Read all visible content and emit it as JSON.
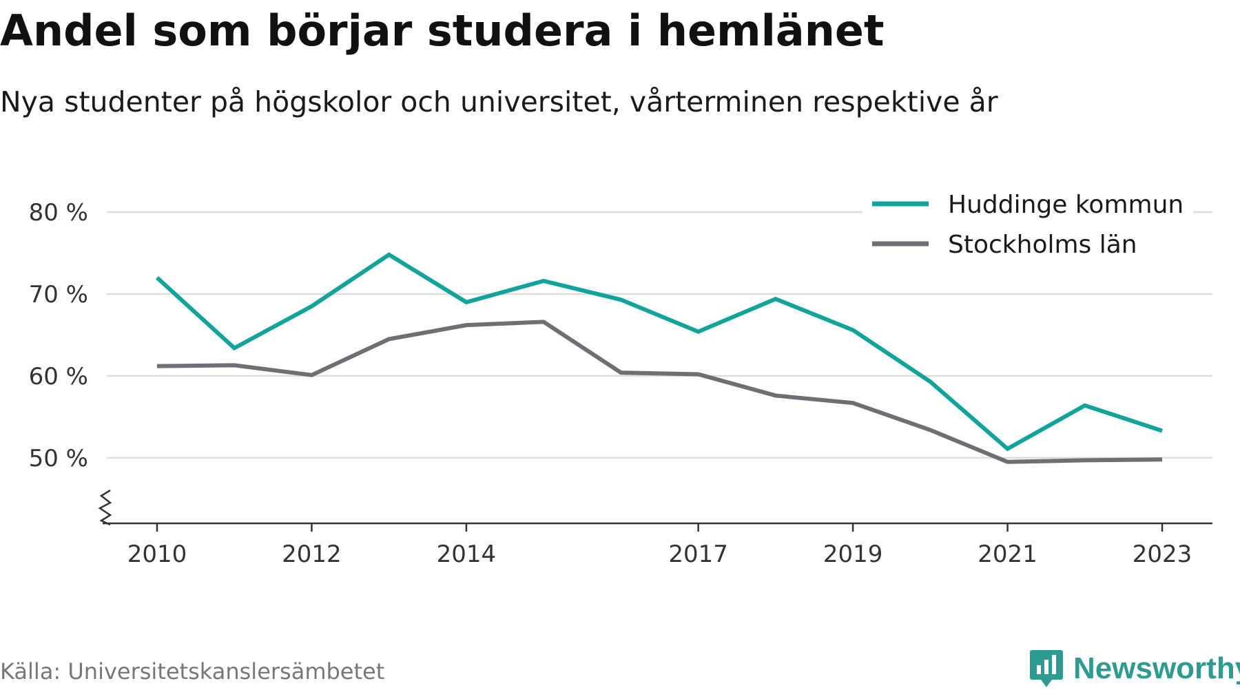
{
  "title": "Andel som börjar studera i hemlänet",
  "subtitle": "Nya studenter på högskolor och universitet, vårterminen respektive år",
  "source": "Källa: Universitetskanslersämbetet",
  "brand": "Newsworthy",
  "colors": {
    "huddinge": "#12a39b",
    "stockholm": "#6f6e75",
    "grid": "#dddddd",
    "axis": "#333333",
    "brand": "#2e9b91"
  },
  "chart_data": {
    "type": "line",
    "x": [
      2010,
      2011,
      2012,
      2013,
      2014,
      2015,
      2016,
      2017,
      2018,
      2019,
      2020,
      2021,
      2022,
      2023
    ],
    "x_tick_values": [
      2010,
      2012,
      2014,
      2017,
      2019,
      2021,
      2023
    ],
    "x_tick_labels": [
      "2010",
      "2012",
      "2014",
      "2017",
      "2019",
      "2021",
      "2023"
    ],
    "y_tick_values": [
      50,
      60,
      70,
      80
    ],
    "y_tick_labels": [
      "50 %",
      "60 %",
      "70 %",
      "80 %"
    ],
    "ylim": [
      42,
      80
    ],
    "xlim": [
      2009.35,
      2023.65
    ],
    "y_axis_break": true,
    "grid": true,
    "legend_position": "top-right",
    "series": [
      {
        "name": "Huddinge kommun",
        "color": "#12a39b",
        "values": [
          72.0,
          63.4,
          68.5,
          74.8,
          69.0,
          71.6,
          69.3,
          65.4,
          69.4,
          65.6,
          59.3,
          51.1,
          56.4,
          53.3
        ]
      },
      {
        "name": "Stockholms län",
        "color": "#6f6e75",
        "values": [
          61.2,
          61.3,
          60.1,
          64.5,
          66.2,
          66.6,
          60.4,
          60.2,
          57.6,
          56.7,
          53.4,
          49.5,
          49.7,
          49.8
        ]
      }
    ]
  }
}
